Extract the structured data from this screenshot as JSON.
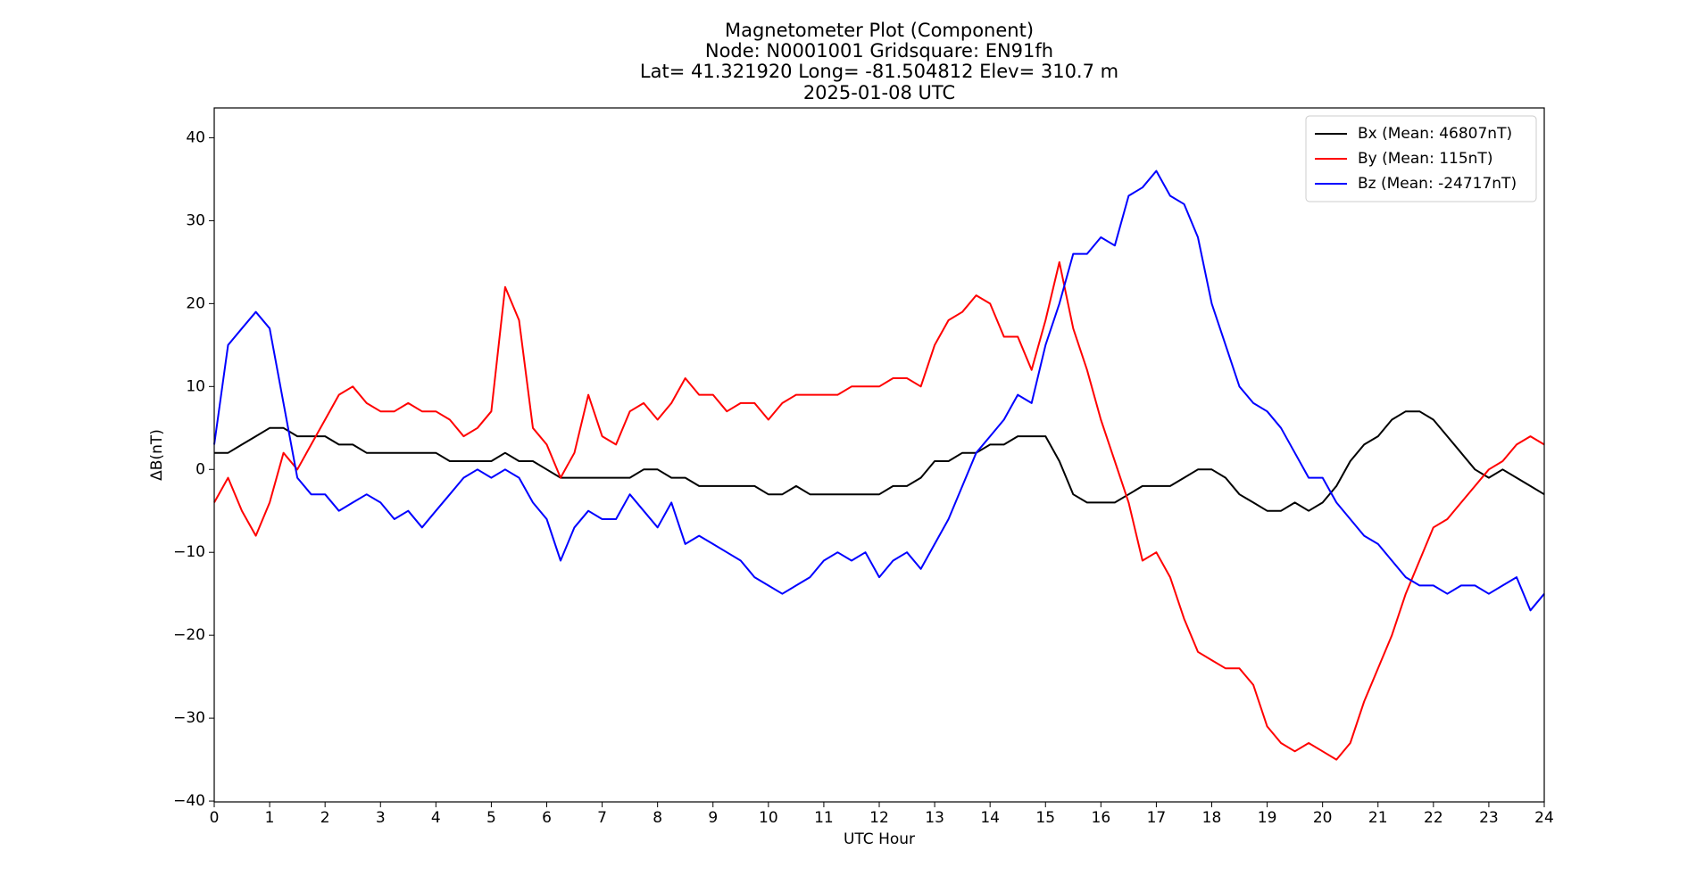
{
  "chart_data": {
    "type": "line",
    "title_lines": [
      "Magnetometer Plot (Component)",
      "Node:  N0001001     Gridsquare:  EN91fh",
      "Lat= 41.321920    Long= -81.504812    Elev= 310.7 m",
      "2025-01-08  UTC"
    ],
    "xlabel": "UTC Hour",
    "ylabel": "ΔB(nT)",
    "legend": "upper right",
    "x": [
      0,
      0.25,
      0.5,
      0.75,
      1,
      1.25,
      1.5,
      1.75,
      2,
      2.25,
      2.5,
      2.75,
      3,
      3.25,
      3.5,
      3.75,
      4,
      4.25,
      4.5,
      4.75,
      5,
      5.25,
      5.5,
      5.75,
      6,
      6.25,
      6.5,
      6.75,
      7,
      7.25,
      7.5,
      7.75,
      8,
      8.25,
      8.5,
      8.75,
      9,
      9.25,
      9.5,
      9.75,
      10,
      10.25,
      10.5,
      10.75,
      11,
      11.25,
      11.5,
      11.75,
      12,
      12.25,
      12.5,
      12.75,
      13,
      13.25,
      13.5,
      13.75,
      14,
      14.25,
      14.5,
      14.75,
      15,
      15.25,
      15.5,
      15.75,
      16,
      16.25,
      16.5,
      16.75,
      17,
      17.25,
      17.5,
      17.75,
      18,
      18.25,
      18.5,
      18.75,
      19,
      19.25,
      19.5,
      19.75,
      20,
      20.25,
      20.5,
      20.75,
      21,
      21.25,
      21.5,
      21.75,
      22,
      22.25,
      22.5,
      22.75,
      23,
      23.25,
      23.5,
      23.75,
      24
    ],
    "series": [
      {
        "name": "Bx (Mean: 46807nT)",
        "color": "#000000",
        "values": [
          2,
          2,
          3,
          4,
          5,
          5,
          4,
          4,
          4,
          3,
          3,
          2,
          2,
          2,
          2,
          2,
          2,
          1,
          1,
          1,
          1,
          2,
          1,
          1,
          0,
          -1,
          -1,
          -1,
          -1,
          -1,
          -1,
          0,
          0,
          -1,
          -1,
          -2,
          -2,
          -2,
          -2,
          -2,
          -3,
          -3,
          -2,
          -3,
          -3,
          -3,
          -3,
          -3,
          -3,
          -2,
          -2,
          -1,
          1,
          1,
          2,
          2,
          3,
          3,
          4,
          4,
          4,
          1,
          -3,
          -4,
          -4,
          -4,
          -3,
          -2,
          -2,
          -2,
          -1,
          0,
          0,
          -1,
          -3,
          -4,
          -5,
          -5,
          -4,
          -5,
          -4,
          -2,
          1,
          3,
          4,
          6,
          7,
          7,
          6,
          4,
          2,
          0,
          -1,
          0,
          -1,
          -2,
          -3
        ]
      },
      {
        "name": "By (Mean: 115nT)",
        "color": "#ff0000",
        "values": [
          -4,
          -1,
          -5,
          -8,
          -4,
          2,
          0,
          3,
          6,
          9,
          10,
          8,
          7,
          7,
          8,
          7,
          7,
          6,
          4,
          5,
          7,
          22,
          18,
          5,
          3,
          -1,
          2,
          9,
          4,
          3,
          7,
          8,
          6,
          8,
          11,
          9,
          9,
          7,
          8,
          8,
          6,
          8,
          9,
          9,
          9,
          9,
          10,
          10,
          10,
          11,
          11,
          10,
          15,
          18,
          19,
          21,
          20,
          16,
          16,
          12,
          18,
          25,
          17,
          12,
          6,
          1,
          -4,
          -11,
          -10,
          -13,
          -18,
          -22,
          -23,
          -24,
          -24,
          -26,
          -31,
          -33,
          -34,
          -33,
          -34,
          -35,
          -33,
          -28,
          -24,
          -20,
          -15,
          -11,
          -7,
          -6,
          -4,
          -2,
          0,
          1,
          3,
          4,
          3
        ]
      },
      {
        "name": "Bz (Mean: -24717nT)",
        "color": "#0000ff",
        "values": [
          3,
          15,
          17,
          19,
          17,
          8,
          -1,
          -3,
          -3,
          -5,
          -4,
          -3,
          -4,
          -6,
          -5,
          -7,
          -5,
          -3,
          -1,
          0,
          -1,
          0,
          -1,
          -4,
          -6,
          -11,
          -7,
          -5,
          -6,
          -6,
          -3,
          -5,
          -7,
          -4,
          -9,
          -8,
          -9,
          -10,
          -11,
          -13,
          -14,
          -15,
          -14,
          -13,
          -11,
          -10,
          -11,
          -10,
          -13,
          -11,
          -10,
          -12,
          -9,
          -6,
          -2,
          2,
          4,
          6,
          9,
          8,
          15,
          20,
          26,
          26,
          28,
          27,
          33,
          34,
          36,
          33,
          32,
          28,
          20,
          15,
          10,
          8,
          7,
          5,
          2,
          -1,
          -1,
          -4,
          -6,
          -8,
          -9,
          -11,
          -13,
          -14,
          -14,
          -15,
          -14,
          -14,
          -15,
          -14,
          -13,
          -17,
          -15
        ]
      }
    ],
    "xlim": [
      0,
      24
    ],
    "xticks": [
      0,
      1,
      2,
      3,
      4,
      5,
      6,
      7,
      8,
      9,
      10,
      11,
      12,
      13,
      14,
      15,
      16,
      17,
      18,
      19,
      20,
      21,
      22,
      23,
      24
    ],
    "ylim": [
      -40.1,
      43.6
    ],
    "yticks": [
      {
        "value": -40,
        "label": "−40"
      },
      {
        "value": -30,
        "label": "−30"
      },
      {
        "value": -20,
        "label": "−20"
      },
      {
        "value": -10,
        "label": "−10"
      },
      0,
      10,
      20,
      30,
      40
    ],
    "grid": false
  }
}
